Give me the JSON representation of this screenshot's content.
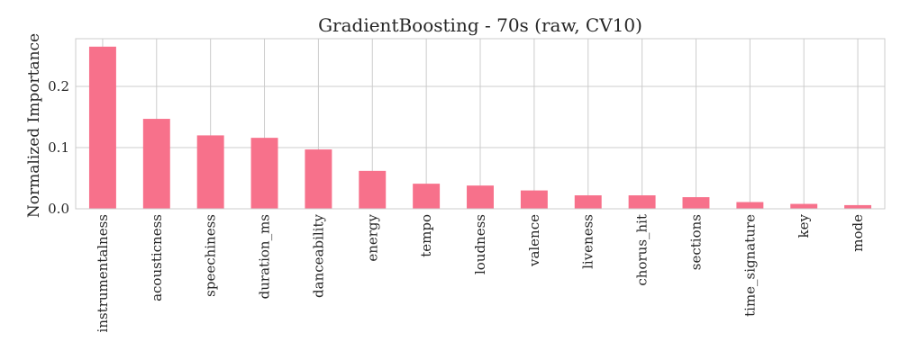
{
  "chart_data": {
    "type": "bar",
    "title": "GradientBoosting - 70s (raw, CV10)",
    "xlabel": "",
    "ylabel": "Normalized Importance",
    "categories": [
      "instrumentalness",
      "acousticness",
      "speechiness",
      "duration_ms",
      "danceability",
      "energy",
      "tempo",
      "loudness",
      "valence",
      "liveness",
      "chorus_hit",
      "sections",
      "time_signature",
      "key",
      "mode"
    ],
    "values": [
      0.265,
      0.147,
      0.12,
      0.116,
      0.097,
      0.062,
      0.041,
      0.038,
      0.03,
      0.022,
      0.022,
      0.019,
      0.011,
      0.008,
      0.006
    ],
    "ylim": [
      0,
      0.278
    ],
    "yticks": [
      0.0,
      0.1,
      0.2
    ],
    "ytick_labels": [
      "0.0",
      "0.1",
      "0.2"
    ],
    "grid": true,
    "bar_color": "#f7718b",
    "legend": "none"
  }
}
